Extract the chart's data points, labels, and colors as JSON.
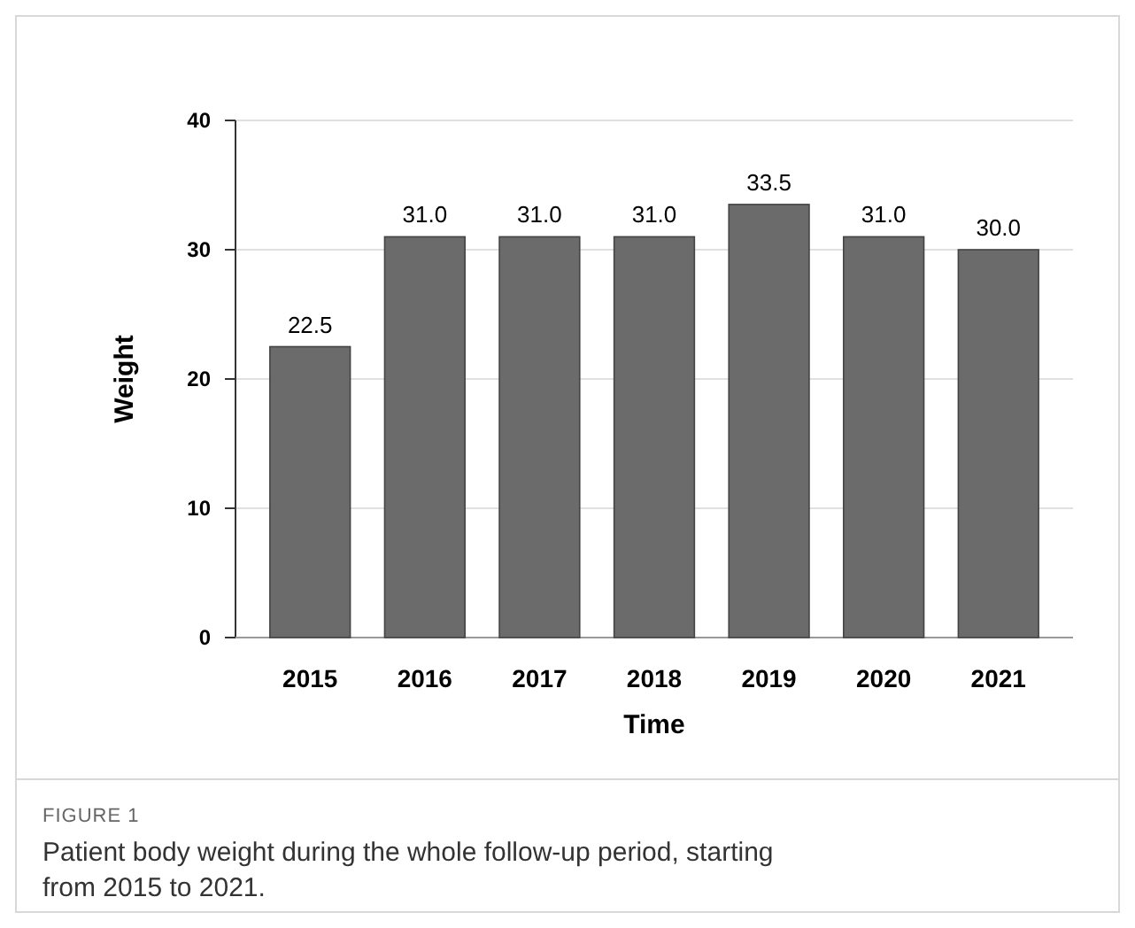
{
  "chart_data": {
    "type": "bar",
    "xlabel": "Time",
    "ylabel": "Weight",
    "categories": [
      "2015",
      "2016",
      "2017",
      "2018",
      "2019",
      "2020",
      "2021"
    ],
    "values": [
      22.5,
      31.0,
      31.0,
      31.0,
      33.5,
      31.0,
      30.0
    ],
    "value_labels": [
      "22.5",
      "31.0",
      "31.0",
      "31.0",
      "33.5",
      "31.0",
      "30.0"
    ],
    "color": "#6b6b6b",
    "ylim": [
      0,
      40
    ],
    "yticks": [
      0,
      10,
      20,
      30,
      40
    ],
    "grid": "y",
    "annotations": [
      "FIGURE 1",
      "Patient body weight during the whole follow-up period, starting from 2015 to 2021."
    ]
  }
}
